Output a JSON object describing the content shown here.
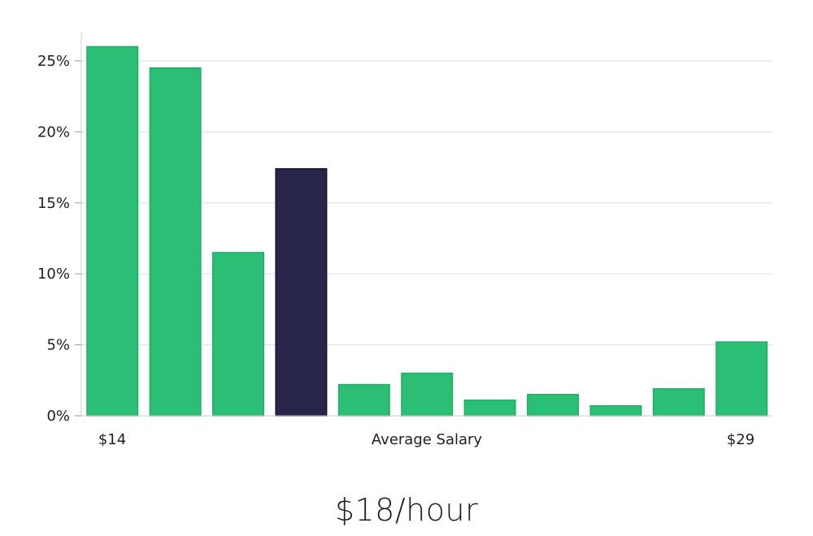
{
  "chart_data": {
    "type": "bar",
    "values": [
      26.0,
      24.5,
      11.5,
      17.4,
      2.2,
      3.0,
      1.1,
      1.5,
      0.7,
      1.9,
      5.2
    ],
    "highlight_index": 3,
    "ylim": [
      0,
      27
    ],
    "yticks": [
      0,
      5,
      10,
      15,
      20,
      25
    ],
    "ytick_format": "{v}%",
    "xlabel_left": "$14",
    "xlabel_center": "Average Salary",
    "xlabel_right": "$29",
    "grid": true,
    "colors": {
      "bar": "#2bbf76",
      "bar_stroke": "#1fae67",
      "highlight": "#28254a",
      "highlight_stroke": "#15133a",
      "grid": "#dddddd",
      "axis": "#cccccc"
    }
  },
  "headline": "$18/hour"
}
